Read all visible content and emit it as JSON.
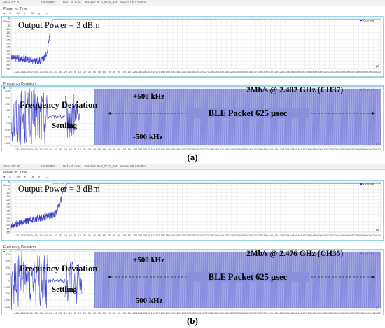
{
  "colors": {
    "trace": "#3a3fc8",
    "fill": "#8b90de",
    "frame_border": "#33a9d6",
    "current": "#2b35c0"
  },
  "panels": [
    {
      "caption": "(a)",
      "statusbar": [
        "Meas Ch: 0",
        "2402 MHz",
        "Ref Lvl: Auto",
        "Packet: BLE_PHY_2M",
        "Setup: LE / 2Mbps"
      ],
      "controls": [
        "C",
        "Off",
        "x",
        "Off",
        "y",
        "----"
      ],
      "power": {
        "title": "Power vs. Time",
        "ylabel": "dBm",
        "unit_x": "µs",
        "legend": "Current",
        "annotation": "Output Power = 3 dBm"
      },
      "freq": {
        "title": "Frequency Deviation",
        "unit_x": "µs",
        "legend": "Current",
        "label_main": "Frequency Deviation",
        "label_settle": "Settling",
        "label_plus": "+500 kHz",
        "label_minus": "-500 kHz",
        "label_channel": "2Mb/s @ 2.402 GHz (CH37)",
        "label_packet": "BLE Packet 625 µsec"
      }
    },
    {
      "caption": "(b)",
      "statusbar": [
        "Meas Ch: 37",
        "2476 MHz",
        "Ref Lvl: Auto",
        "Packet: BLE_PHY_2M",
        "Setup: LE / 2Mbps"
      ],
      "controls": [
        "C",
        "Off",
        "x",
        "Off",
        "y",
        "----"
      ],
      "power": {
        "title": "Power vs. Time",
        "ylabel": "dBm",
        "unit_x": "µs",
        "legend": "Current",
        "annotation": "Output Power = 3 dBm"
      },
      "freq": {
        "title": "Frequency Deviation",
        "unit_x": "µs",
        "legend": "Current",
        "label_main": "Frequency Deviation",
        "label_settle": "Settling",
        "label_plus": "+500 kHz",
        "label_minus": "-500 kHz",
        "label_channel": "2Mb/s @ 2.476 GHz (CH35)",
        "label_packet": "BLE Packet 625 µsec"
      }
    }
  ],
  "chart_data": [
    {
      "type": "line",
      "title": "Power vs. Time",
      "panel": "(a)",
      "xlabel": "µs",
      "ylabel": "dBm",
      "xlim": [
        -130,
        625
      ],
      "ylim": [
        -65,
        5
      ],
      "x_ticks": [
        -120,
        -110,
        -100,
        -90,
        -80,
        -70,
        -60,
        -50,
        -40,
        -30,
        -20,
        -10,
        0,
        10,
        20,
        30,
        40,
        50,
        60,
        70,
        80,
        90,
        100,
        110,
        120,
        130,
        140,
        150,
        160,
        170,
        180,
        190,
        200,
        210,
        220,
        230,
        240,
        250,
        260,
        270,
        280,
        290,
        300,
        310,
        320,
        330,
        340,
        350,
        360,
        370,
        380,
        390,
        400,
        410,
        420,
        430,
        440,
        450,
        460,
        470,
        480,
        490,
        500,
        510,
        520,
        530,
        540,
        550,
        560,
        570,
        580,
        590,
        600,
        610,
        620
      ],
      "y_ticks": [
        5,
        0,
        -5,
        -10,
        -15,
        -20,
        -25,
        -30,
        -35,
        -40,
        -45,
        -50,
        -55,
        -60,
        -65
      ],
      "series": [
        {
          "name": "Current",
          "points": [
            [
              -130,
              -50
            ],
            [
              -100,
              -52
            ],
            [
              -75,
              -55
            ],
            [
              -65,
              -52
            ],
            [
              -60,
              -48
            ],
            [
              -55,
              -35
            ],
            [
              -52,
              -22
            ],
            [
              -50,
              -8
            ],
            [
              -47,
              -2
            ],
            [
              -45,
              3
            ],
            [
              625,
              3
            ]
          ]
        }
      ]
    },
    {
      "type": "line",
      "title": "Frequency Deviation",
      "panel": "(a)",
      "xlabel": "µs",
      "ylim": [
        -450,
        450
      ],
      "xlim": [
        -130,
        625
      ],
      "x_ticks": [
        -120,
        -110,
        -100,
        -90,
        -80,
        -70,
        -60,
        -50,
        -40,
        -30,
        -20,
        -10,
        0,
        10,
        20,
        30,
        40,
        50,
        60,
        70,
        80,
        90,
        100,
        110,
        120,
        130,
        140,
        150,
        160,
        170,
        180,
        190,
        200,
        210,
        220,
        230,
        240,
        250,
        260,
        270,
        280,
        290,
        300,
        310,
        320,
        330,
        340,
        350,
        360,
        370,
        380,
        390,
        400,
        410,
        420,
        430,
        440,
        450,
        460,
        470,
        480,
        490,
        500,
        510,
        520,
        530,
        540,
        550,
        560,
        570,
        580,
        590,
        600,
        610,
        620
      ],
      "y_ticks": [
        400,
        300,
        200,
        100,
        0,
        -100,
        -200,
        -300,
        -400
      ],
      "series": [
        {
          "name": "Current",
          "segments": [
            {
              "x_range": [
                -130,
                -55
              ],
              "kind": "noise",
              "amplitude": 450
            },
            {
              "x_range": [
                -55,
                -20
              ],
              "kind": "settling",
              "value": 0
            },
            {
              "x_range": [
                -20,
                10
              ],
              "kind": "noise",
              "amplitude": 350
            },
            {
              "x_range": [
                40,
                625
              ],
              "kind": "gfsk",
              "deviation": 500
            }
          ]
        }
      ]
    },
    {
      "type": "line",
      "title": "Power vs. Time",
      "panel": "(b)",
      "xlabel": "µs",
      "ylabel": "dBm",
      "xlim": [
        -130,
        625
      ],
      "ylim": [
        -65,
        5
      ],
      "x_ticks": [
        -120,
        -110,
        -100,
        -90,
        -80,
        -70,
        -60,
        -50,
        -40,
        -30,
        -20,
        -10,
        0,
        10,
        20,
        30,
        40,
        50,
        60,
        70,
        80,
        90,
        100,
        110,
        120,
        130,
        140,
        150,
        160,
        170,
        180,
        190,
        200,
        210,
        220,
        230,
        240,
        250,
        260,
        270,
        280,
        290,
        300,
        310,
        320,
        330,
        340,
        350,
        360,
        370,
        380,
        390,
        400,
        410,
        420,
        430,
        440,
        450,
        460,
        470,
        480,
        490,
        500,
        510,
        520,
        530,
        540,
        550,
        560,
        570,
        580,
        590,
        600,
        610,
        620
      ],
      "y_ticks": [
        5,
        0,
        -5,
        -10,
        -15,
        -20,
        -25,
        -30,
        -35,
        -40,
        -45,
        -50,
        -55,
        -60,
        -65
      ],
      "series": [
        {
          "name": "Current",
          "points": [
            [
              -130,
              -55
            ],
            [
              -100,
              -50
            ],
            [
              -70,
              -45
            ],
            [
              -40,
              -40
            ],
            [
              -30,
              -25
            ],
            [
              -25,
              -10
            ],
            [
              -20,
              -2
            ],
            [
              -15,
              3
            ],
            [
              625,
              3
            ]
          ]
        }
      ]
    },
    {
      "type": "line",
      "title": "Frequency Deviation",
      "panel": "(b)",
      "xlabel": "µs",
      "ylim": [
        -450,
        450
      ],
      "xlim": [
        -130,
        625
      ],
      "x_ticks": [
        -120,
        -110,
        -100,
        -90,
        -80,
        -70,
        -60,
        -50,
        -40,
        -30,
        -20,
        -10,
        0,
        10,
        20,
        30,
        40,
        50,
        60,
        70,
        80,
        90,
        100,
        110,
        120,
        130,
        140,
        150,
        160,
        170,
        180,
        190,
        200,
        210,
        220,
        230,
        240,
        250,
        260,
        270,
        280,
        290,
        300,
        310,
        320,
        330,
        340,
        350,
        360,
        370,
        380,
        390,
        400,
        410,
        420,
        430,
        440,
        450,
        460,
        470,
        480,
        490,
        500,
        510,
        520,
        530,
        540,
        550,
        560,
        570,
        580,
        590,
        600,
        610,
        620
      ],
      "y_ticks": [
        400,
        300,
        200,
        100,
        0,
        -100,
        -200,
        -300,
        -400
      ],
      "series": [
        {
          "name": "Current",
          "segments": [
            {
              "x_range": [
                -130,
                -55
              ],
              "kind": "noise",
              "amplitude": 450
            },
            {
              "x_range": [
                -55,
                -20
              ],
              "kind": "settling",
              "value": 0
            },
            {
              "x_range": [
                -20,
                15
              ],
              "kind": "noise",
              "amplitude": 350
            },
            {
              "x_range": [
                40,
                625
              ],
              "kind": "gfsk",
              "deviation": 500
            }
          ]
        }
      ]
    }
  ]
}
